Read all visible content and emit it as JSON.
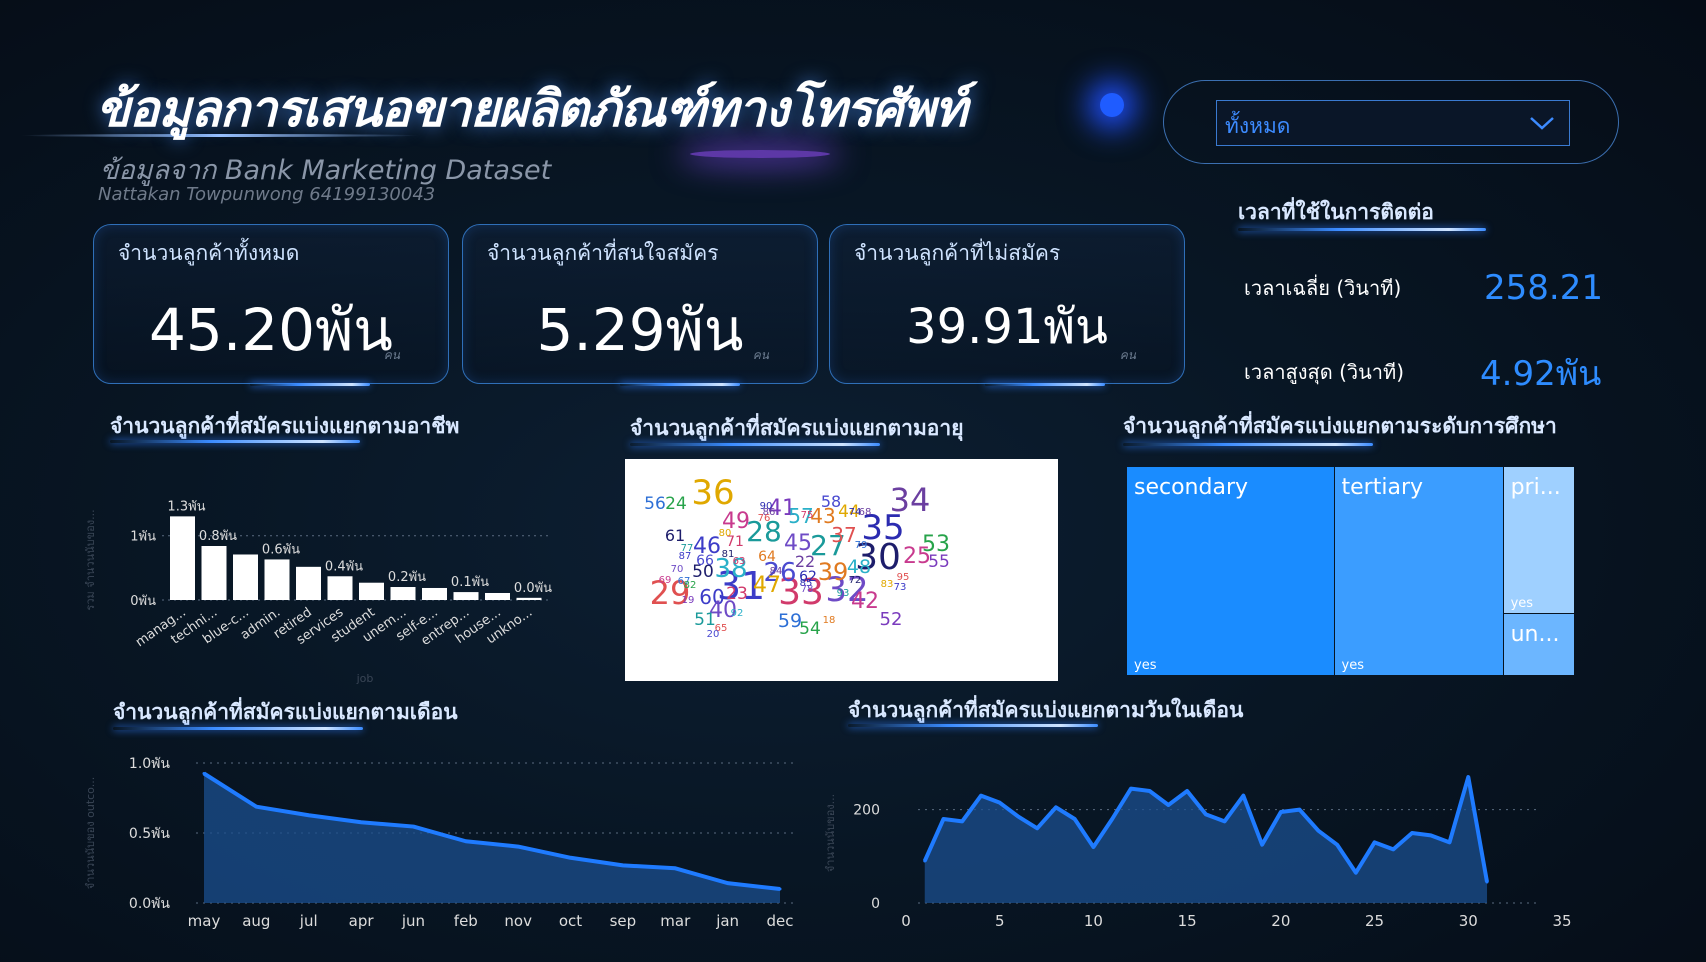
{
  "header": {
    "title": "ข้อมูลการเสนอขายผลิตภัณฑ์ทางโทรศัพท์",
    "subtitle": "ข้อมูลจาก Bank Marketing Dataset",
    "author": "Nattakan Towpunwong 64199130043"
  },
  "slicer": {
    "selected": "ทั้งหมด"
  },
  "kpis": [
    {
      "label": "จำนวนลูกค้าทั้งหมด",
      "value": "45.20พัน",
      "unit": "คน"
    },
    {
      "label": "จำนวนลูกค้าที่สนใจสมัคร",
      "value": "5.29พัน",
      "unit": "คน"
    },
    {
      "label": "จำนวนลูกค้าที่ไม่สมัคร",
      "value": "39.91พัน",
      "unit": "คน"
    }
  ],
  "duration": {
    "title": "เวลาที่ใช้ในการติดต่อ",
    "avg_label": "เวลาเฉลี่ย (วินาที)",
    "avg_value": "258.21",
    "max_label": "เวลาสูงสุด (วินาที)",
    "max_value": "4.92พัน"
  },
  "colors": {
    "accent": "#2e8cff",
    "area": "#1f7bff",
    "treemap_secondary": "#1a8cff",
    "treemap_tertiary": "#3b9dff",
    "treemap_primary": "#9fd0ff"
  },
  "chart_data": [
    {
      "type": "bar",
      "title": "จำนวนลูกค้าที่สมัครแบ่งแยกตามอาชีพ",
      "xlabel": "job",
      "ylabel": "รวม จำนวนนับของ...",
      "categories": [
        "manag...",
        "techni...",
        "blue-c...",
        "admin.",
        "retired",
        "services",
        "student",
        "unem...",
        "self-e...",
        "entrep...",
        "house...",
        "unkno..."
      ],
      "values": [
        1301,
        840,
        708,
        631,
        516,
        369,
        269,
        202,
        187,
        123,
        109,
        34
      ],
      "data_labels": [
        "1.3พัน",
        "0.8พัน",
        "",
        "0.6พัน",
        "",
        "0.4พัน",
        "",
        "0.2พัน",
        "",
        "0.1พัน",
        "",
        "0.0พัน"
      ],
      "ytick_labels": [
        "0พัน",
        "1พัน"
      ],
      "ylim": [
        0,
        1400
      ]
    },
    {
      "type": "other",
      "title": "จำนวนลูกค้าที่สมัครแบ่งแยกตามอายุ",
      "words": [
        "36",
        "34",
        "35",
        "30",
        "31",
        "33",
        "32",
        "28",
        "29",
        "56",
        "24",
        "49",
        "41",
        "57",
        "43",
        "58",
        "44",
        "68",
        "74",
        "61",
        "46",
        "71",
        "45",
        "27",
        "37",
        "79",
        "53",
        "25",
        "55",
        "38",
        "39",
        "26",
        "47",
        "22",
        "62",
        "50",
        "60",
        "23",
        "40",
        "51",
        "65",
        "59",
        "54",
        "42",
        "52",
        "48",
        "64",
        "66",
        "80",
        "86",
        "90",
        "81",
        "87",
        "63",
        "70",
        "77",
        "76",
        "67",
        "82",
        "69",
        "19",
        "92",
        "18",
        "20",
        "83",
        "84",
        "85",
        "72",
        "73",
        "75",
        "78",
        "93",
        "95"
      ]
    },
    {
      "type": "heatmap",
      "title": "จำนวนลูกค้าที่สมัครแบ่งแยกตามระดับการศึกษา",
      "categories": [
        "secondary",
        "tertiary",
        "pri...",
        "un..."
      ],
      "sublabels": [
        "yes",
        "yes",
        "yes",
        ""
      ],
      "values": [
        2450,
        1996,
        591,
        252
      ]
    },
    {
      "type": "area",
      "title": "จำนวนลูกค้าที่สมัครแบ่งแยกตามเดือน",
      "ylabel": "จำนวนนับของ outco...",
      "categories": [
        "may",
        "aug",
        "jul",
        "apr",
        "jun",
        "feb",
        "nov",
        "oct",
        "sep",
        "mar",
        "jan",
        "dec"
      ],
      "values": [
        925,
        688,
        627,
        577,
        546,
        441,
        403,
        323,
        269,
        248,
        142,
        100
      ],
      "ytick_labels": [
        "0.0พัน",
        "0.5พัน",
        "1.0พัน"
      ],
      "ylim": [
        0,
        1000
      ]
    },
    {
      "type": "area",
      "title": "จำนวนลูกค้าที่สมัครแบ่งแยกตามวันในเดือน",
      "ylabel": "จำนวนนับของ...",
      "x": [
        1,
        2,
        3,
        4,
        5,
        6,
        7,
        8,
        9,
        10,
        11,
        12,
        13,
        14,
        15,
        16,
        17,
        18,
        19,
        20,
        21,
        22,
        23,
        24,
        25,
        26,
        27,
        28,
        29,
        30,
        31
      ],
      "values": [
        90,
        180,
        175,
        230,
        215,
        185,
        160,
        205,
        180,
        120,
        180,
        245,
        240,
        210,
        240,
        190,
        175,
        230,
        125,
        195,
        200,
        155,
        125,
        65,
        130,
        115,
        150,
        145,
        130,
        270,
        45
      ],
      "xticks": [
        "0",
        "5",
        "10",
        "15",
        "20",
        "25",
        "30",
        "35"
      ],
      "ytick_labels": [
        "0",
        "200"
      ],
      "xlim": [
        0,
        35
      ],
      "ylim": [
        0,
        300
      ]
    }
  ]
}
